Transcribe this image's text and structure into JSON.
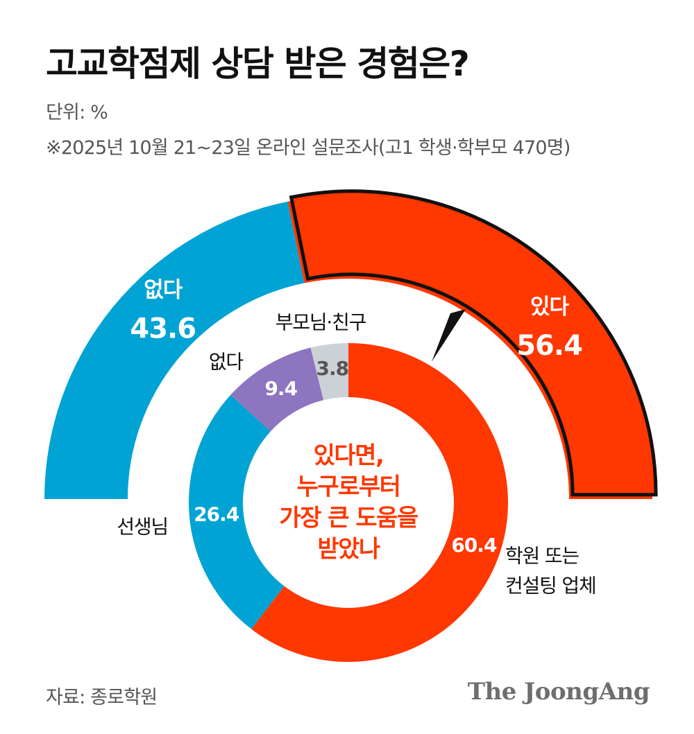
{
  "header": {
    "title": "고교학점제 상담 받은 경험은?",
    "unit": "단위: %",
    "survey_note": "※2025년 10월 21~23일 온라인 설문조사(고1 학생·학부모 470명)"
  },
  "footer": {
    "source": "자료: 종로학원",
    "brand": "The JoongAng"
  },
  "chart_data": [
    {
      "type": "pie",
      "subtype": "half-donut",
      "categories": [
        "없다",
        "있다"
      ],
      "values": [
        43.6,
        56.4
      ],
      "colors": [
        "#00a3d4",
        "#ff3700"
      ],
      "value_labels": [
        "43.6",
        "56.4"
      ]
    },
    {
      "type": "pie",
      "subtype": "donut",
      "center_title": [
        "있다면,",
        "누구로부터",
        "가장 큰 도움을",
        "받았나"
      ],
      "categories": [
        "학원 또는 컨설팅 업체",
        "선생님",
        "없다",
        "부모님·친구"
      ],
      "category_label_lines": [
        [
          "학원 또는",
          "컨설팅 업체"
        ],
        [
          "선생님"
        ],
        [
          "없다"
        ],
        [
          "부모님·친구"
        ]
      ],
      "values": [
        60.4,
        26.4,
        9.4,
        3.8
      ],
      "value_labels": [
        "60.4",
        "26.4",
        "9.4",
        "3.8"
      ],
      "colors": [
        "#ff3700",
        "#00a3d4",
        "#8e75c0",
        "#ccd1d5"
      ],
      "title_color": "#ff3700"
    }
  ]
}
